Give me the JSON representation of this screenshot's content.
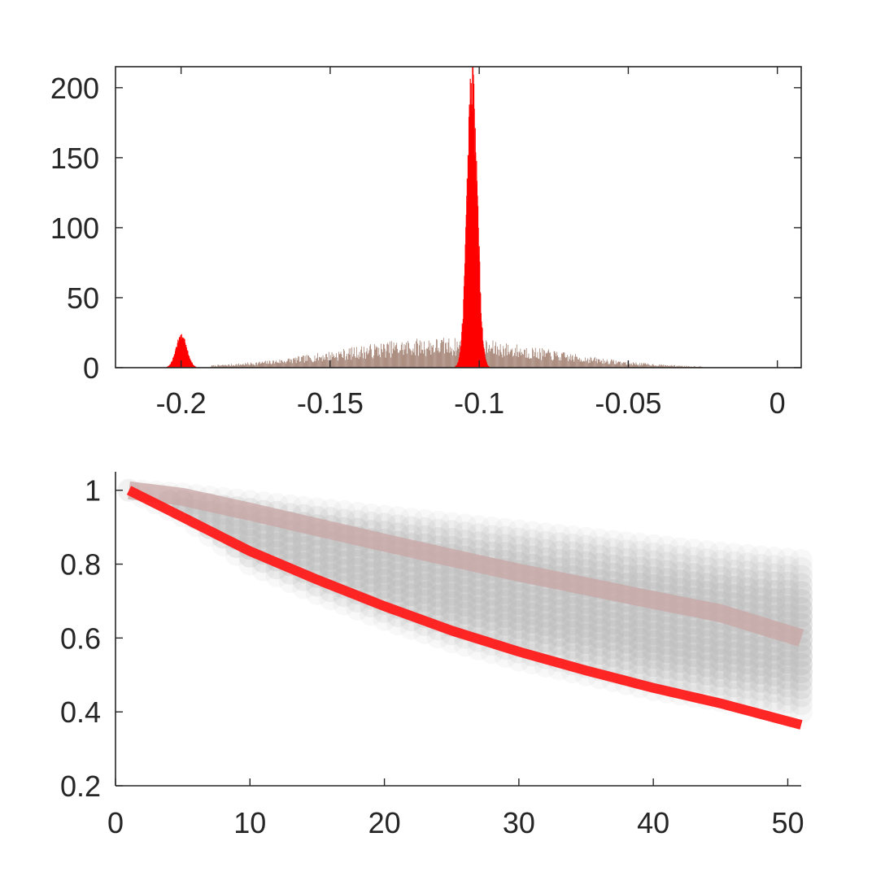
{
  "chart_data": [
    {
      "type": "histogram",
      "title": "",
      "xlabel": "",
      "ylabel": "",
      "xlim": [
        -0.222,
        0.008
      ],
      "ylim": [
        0,
        215
      ],
      "xticks": [
        -0.2,
        -0.15,
        -0.1,
        -0.05,
        0
      ],
      "xtick_labels": [
        "-0.2",
        "-0.15",
        "-0.1",
        "-0.05",
        "0"
      ],
      "yticks": [
        0,
        50,
        100,
        150,
        200
      ],
      "ytick_labels": [
        "0",
        "50",
        "100",
        "150",
        "200"
      ],
      "grid": false,
      "box": true,
      "series": [
        {
          "color": "#7a4a35",
          "description": "broad distribution",
          "peaks": [
            {
              "center": -0.112,
              "height": 15,
              "width": 0.035
            }
          ],
          "range": [
            -0.19,
            -0.025
          ]
        },
        {
          "color": "#ff0000",
          "description": "narrow distribution",
          "peaks": [
            {
              "center": -0.2,
              "height": 24,
              "width": 0.0018
            },
            {
              "center": -0.1025,
              "height": 215,
              "width": 0.0017
            }
          ]
        }
      ]
    },
    {
      "type": "line",
      "title": "",
      "xlabel": "",
      "ylabel": "",
      "xlim": [
        0,
        51
      ],
      "ylim": [
        0.2,
        1.05
      ],
      "xticks": [
        0,
        10,
        20,
        30,
        40,
        50
      ],
      "xtick_labels": [
        "0",
        "10",
        "20",
        "30",
        "40",
        "50"
      ],
      "yticks": [
        0.2,
        0.4,
        0.6,
        0.8,
        1
      ],
      "ytick_labels": [
        "0.2",
        "0.4",
        "0.6",
        "0.8",
        "1"
      ],
      "grid": false,
      "box": false,
      "x": [
        1,
        5,
        10,
        15,
        20,
        25,
        30,
        35,
        40,
        45,
        51
      ],
      "band": {
        "color": "#bebebe",
        "lower": [
          1.0,
          0.93,
          0.8,
          0.72,
          0.65,
          0.59,
          0.54,
          0.5,
          0.46,
          0.43,
          0.4
        ],
        "upper": [
          1.0,
          0.99,
          0.97,
          0.95,
          0.93,
          0.91,
          0.89,
          0.87,
          0.85,
          0.83,
          0.81
        ]
      },
      "series": [
        {
          "color": "#ff1a1a",
          "values": [
            1.0,
            0.927,
            0.835,
            0.758,
            0.686,
            0.62,
            0.563,
            0.512,
            0.465,
            0.423,
            0.365
          ]
        },
        {
          "color": "#c9a6a6",
          "values": [
            1.0,
            0.982,
            0.942,
            0.9,
            0.858,
            0.817,
            0.777,
            0.74,
            0.703,
            0.667,
            0.6
          ]
        }
      ]
    }
  ]
}
